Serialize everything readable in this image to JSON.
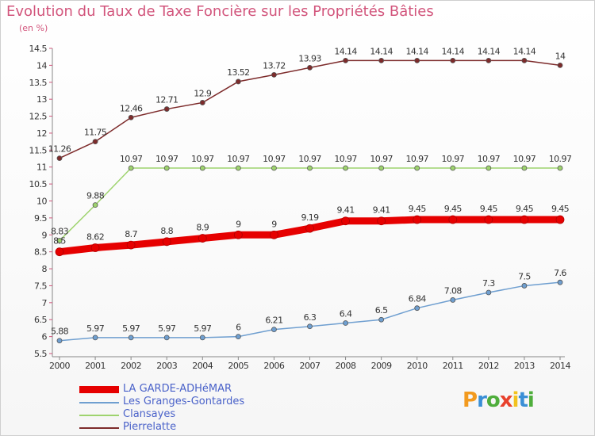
{
  "title": "Evolution du Taux de Taxe Foncière sur les Propriétés Bâties",
  "unit_label": "(en %)",
  "logo": {
    "letters": [
      "P",
      "r",
      "o",
      "x",
      "i",
      "t",
      "i"
    ],
    "colors": [
      "#f29a1f",
      "#3a8fd6",
      "#4fae3c",
      "#e8412c",
      "#f2c21f",
      "#3a8fd6",
      "#4fae3c"
    ]
  },
  "chart_data": {
    "type": "line",
    "title": "Evolution du Taux de Taxe Foncière sur les Propriétés Bâties",
    "ylabel": "(en %)",
    "xlabel": "",
    "x": [
      "2000",
      "2001",
      "2002",
      "2003",
      "2004",
      "2005",
      "2006",
      "2007",
      "2008",
      "2009",
      "2010",
      "2011",
      "2012",
      "2013",
      "2014"
    ],
    "ylim": [
      5.5,
      14.5
    ],
    "yticks": [
      "5.5",
      "6",
      "6.5",
      "7",
      "7.5",
      "8",
      "8.5",
      "9",
      "9.5",
      "10",
      "10.5",
      "11",
      "11.5",
      "12",
      "12.5",
      "13",
      "13.5",
      "14",
      "14.5"
    ],
    "grid": false,
    "legend_position": "bottom-left",
    "series": [
      {
        "name": "LA GARDE-ADHéMAR",
        "color": "#e60000",
        "width": 9,
        "values": [
          8.5,
          8.62,
          8.7,
          8.8,
          8.9,
          9,
          9,
          9.19,
          9.41,
          9.41,
          9.45,
          9.45,
          9.45,
          9.45,
          9.45
        ],
        "labels": [
          "8.5",
          "8.62",
          "8.7",
          "8.8",
          "8.9",
          "9",
          "9",
          "9.19",
          "9.41",
          "9.41",
          "9.45",
          "9.45",
          "9.45",
          "9.45",
          "9.45"
        ]
      },
      {
        "name": "Les Granges-Gontardes",
        "color": "#6f9fd0",
        "width": 1.5,
        "values": [
          5.88,
          5.97,
          5.97,
          5.97,
          5.97,
          6,
          6.21,
          6.3,
          6.4,
          6.5,
          6.84,
          7.08,
          7.3,
          7.5,
          7.6
        ],
        "labels": [
          "5.88",
          "5.97",
          "5.97",
          "5.97",
          "5.97",
          "6",
          "6.21",
          "6.3",
          "6.4",
          "6.5",
          "6.84",
          "7.08",
          "7.3",
          "7.5",
          "7.6"
        ]
      },
      {
        "name": "Clansayes",
        "color": "#9ed36e",
        "width": 1.5,
        "values": [
          8.83,
          9.88,
          10.97,
          10.97,
          10.97,
          10.97,
          10.97,
          10.97,
          10.97,
          10.97,
          10.97,
          10.97,
          10.97,
          10.97,
          10.97
        ],
        "labels": [
          "8.83",
          "9.88",
          "10.97",
          "10.97",
          "10.97",
          "10.97",
          "10.97",
          "10.97",
          "10.97",
          "10.97",
          "10.97",
          "10.97",
          "10.97",
          "10.97",
          "10.97"
        ]
      },
      {
        "name": "Pierrelatte",
        "color": "#7d2b2b",
        "width": 1.5,
        "values": [
          11.26,
          11.75,
          12.46,
          12.71,
          12.9,
          13.52,
          13.72,
          13.93,
          14.14,
          14.14,
          14.14,
          14.14,
          14.14,
          14.14,
          14
        ],
        "labels": [
          "11.26",
          "11.75",
          "12.46",
          "12.71",
          "12.9",
          "13.52",
          "13.72",
          "13.93",
          "14.14",
          "14.14",
          "14.14",
          "14.14",
          "14.14",
          "14.14",
          "14"
        ]
      }
    ]
  }
}
